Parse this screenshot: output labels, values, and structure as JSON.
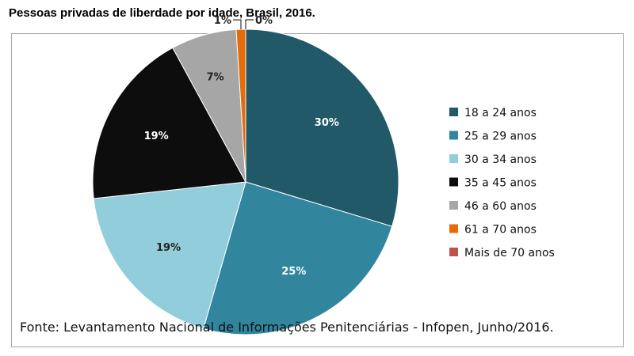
{
  "title": "Pessoas privadas de liberdade por idade, Brasil, 2016.",
  "source": "Fonte: Levantamento Nacional de Informações Penitenciárias - Infopen, Junho/2016.",
  "chart_data": {
    "type": "pie",
    "title": "Pessoas privadas de liberdade por idade, Brasil, 2016.",
    "legend_position": "right",
    "slices": [
      {
        "label": "18 a 24 anos",
        "value": 30,
        "display": "30%",
        "color": "#215968"
      },
      {
        "label": "25 a 29 anos",
        "value": 25,
        "display": "25%",
        "color": "#31859c"
      },
      {
        "label": "30 a 34 anos",
        "value": 19,
        "display": "19%",
        "color": "#92cddc"
      },
      {
        "label": "35 a 45 anos",
        "value": 19,
        "display": "19%",
        "color": "#0d0d0d"
      },
      {
        "label": "46 a 60 anos",
        "value": 7,
        "display": "7%",
        "color": "#a6a6a6"
      },
      {
        "label": "61 a 70 anos",
        "value": 1,
        "display": "1%",
        "color": "#e46c0a"
      },
      {
        "label": "Mais de 70 anos",
        "value": 0,
        "display": "0%",
        "color": "#c0504d"
      }
    ]
  }
}
